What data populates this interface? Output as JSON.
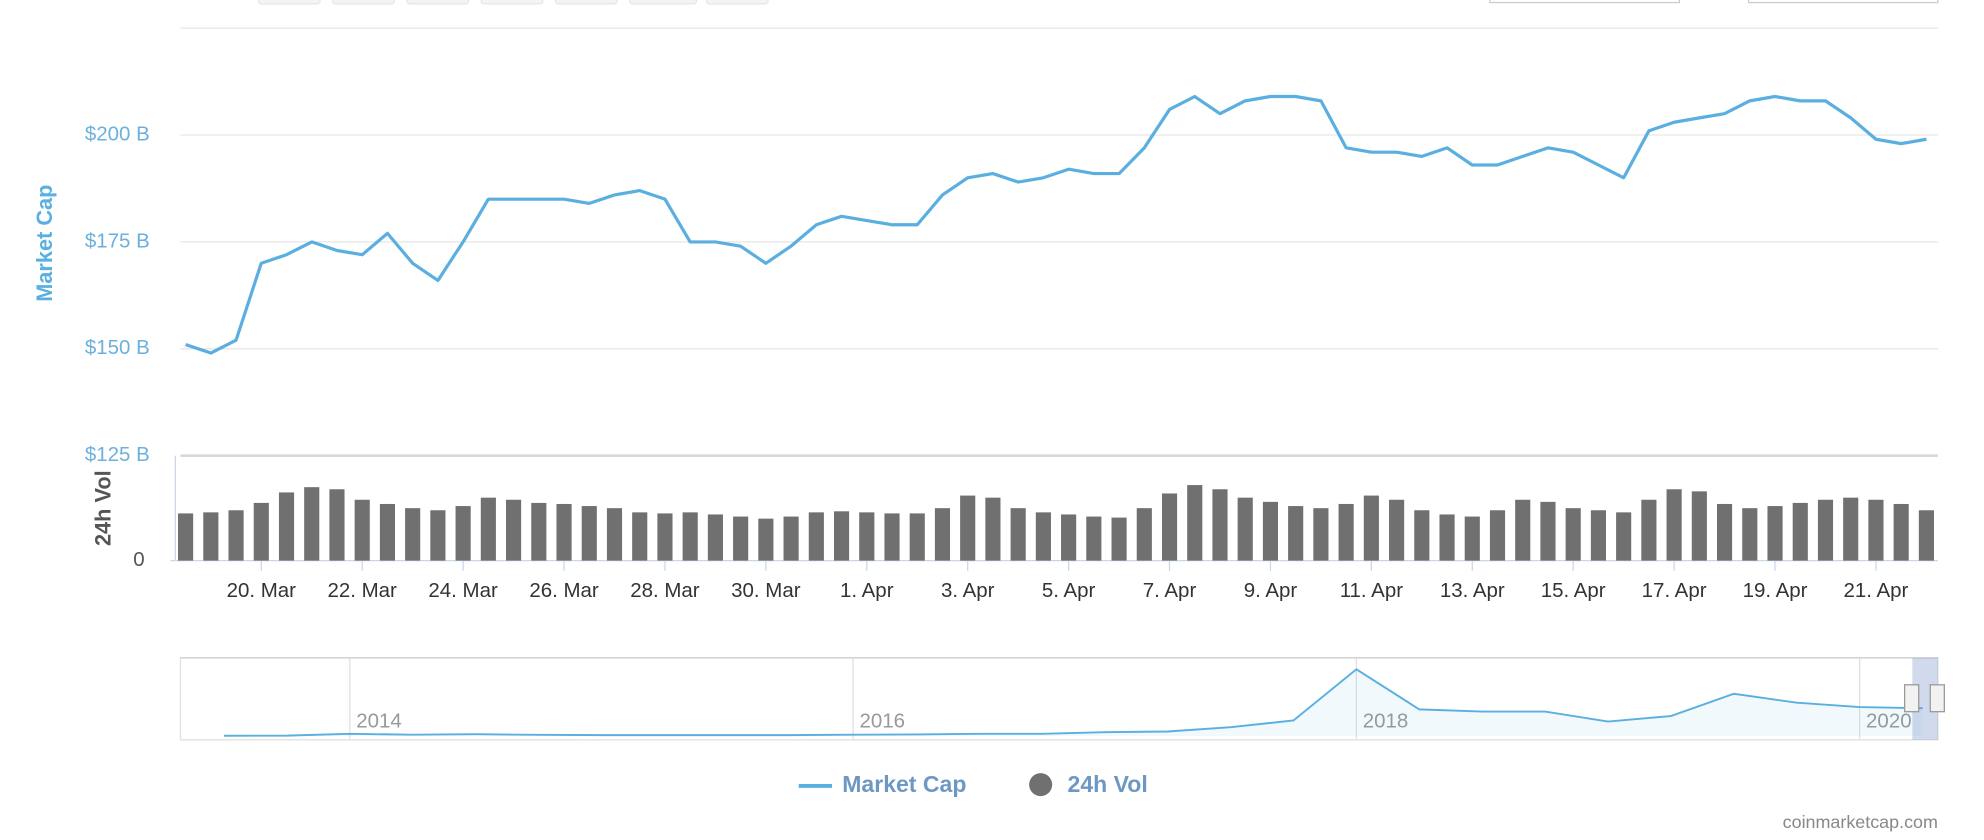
{
  "chart_data": [
    {
      "type": "line",
      "categories": [
        null,
        null,
        null,
        "20. Mar",
        null,
        null,
        null,
        "22. Mar",
        null,
        null,
        null,
        "24. Mar",
        null,
        null,
        null,
        "26. Mar",
        null,
        null,
        null,
        "28. Mar",
        null,
        null,
        null,
        "30. Mar",
        null,
        null,
        null,
        "1. Apr",
        null,
        null,
        null,
        "3. Apr",
        null,
        null,
        null,
        "5. Apr",
        null,
        null,
        null,
        "7. Apr",
        null,
        null,
        null,
        "9. Apr",
        null,
        null,
        null,
        "11. Apr",
        null,
        null,
        null,
        "13. Apr",
        null,
        null,
        null,
        "15. Apr",
        null,
        null,
        null,
        "17. Apr",
        null,
        null,
        null,
        "19. Apr",
        null,
        null,
        null,
        "21. Apr",
        null,
        null
      ],
      "series": [
        {
          "name": "Market Cap",
          "type": "line",
          "color": "#5aafe0",
          "values": [
            151,
            149,
            152,
            170,
            172,
            175,
            173,
            172,
            177,
            170,
            166,
            175,
            185,
            185,
            185,
            185,
            184,
            186,
            187,
            185,
            175,
            175,
            174,
            170,
            174,
            179,
            181,
            180,
            179,
            179,
            186,
            190,
            191,
            189,
            190,
            192,
            191,
            191,
            197,
            206,
            209,
            205,
            208,
            209,
            209,
            208,
            197,
            196,
            196,
            195,
            197,
            193,
            193,
            195,
            197,
            196,
            193,
            190,
            201,
            203,
            204,
            205,
            208,
            209,
            208,
            208,
            204,
            199,
            198,
            199
          ]
        },
        {
          "name": "24h Vol",
          "type": "bar",
          "axis": "y2",
          "color": "#707070",
          "values": [
            45,
            46,
            48,
            55,
            65,
            70,
            68,
            58,
            54,
            50,
            48,
            52,
            60,
            58,
            55,
            54,
            52,
            50,
            46,
            45,
            46,
            44,
            42,
            40,
            42,
            46,
            47,
            46,
            45,
            45,
            50,
            62,
            60,
            50,
            46,
            44,
            42,
            41,
            50,
            64,
            72,
            68,
            60,
            56,
            52,
            50,
            54,
            62,
            58,
            48,
            44,
            42,
            48,
            58,
            56,
            50,
            48,
            46,
            58,
            68,
            66,
            54,
            50,
            52,
            55,
            58,
            60,
            58,
            54,
            48
          ]
        }
      ],
      "ylim": [
        125,
        225
      ],
      "yticks": [
        {
          "value": 125,
          "label": "$125 B"
        },
        {
          "value": 150,
          "label": "$150 B"
        },
        {
          "value": 175,
          "label": "$175 B"
        },
        {
          "value": 200,
          "label": "$200 B"
        }
      ],
      "y2lim": [
        0,
        100
      ],
      "y2ticks": [
        0
      ],
      "ylabel": "Market Cap",
      "y2label": "24h Vol",
      "grid": true,
      "legend": "bottom",
      "source": "coinmarketcap.com"
    },
    {
      "type": "area",
      "categories": [
        null,
        null,
        "2014",
        null,
        null,
        null,
        null,
        null,
        null,
        null,
        "2016",
        null,
        null,
        null,
        null,
        null,
        null,
        null,
        "2018",
        null,
        null,
        null,
        null,
        null,
        null,
        null,
        "2020",
        null
      ],
      "values": [
        1,
        2,
        10,
        6,
        8,
        5,
        4,
        4,
        4,
        4,
        6,
        7,
        10,
        10,
        17,
        20,
        40,
        70,
        300,
        120,
        110,
        110,
        65,
        90,
        190,
        150,
        130,
        125
      ],
      "color": "#5aafe0",
      "ylim": [
        0,
        340
      ]
    }
  ]
}
